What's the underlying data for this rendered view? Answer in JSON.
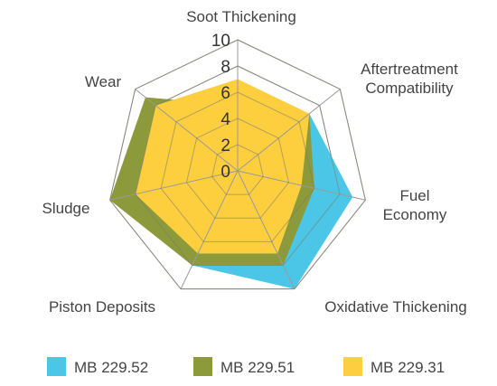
{
  "chart_data": {
    "type": "radar",
    "axes": [
      [
        "Soot Thickening"
      ],
      [
        "Aftertreatment",
        "Compatibility"
      ],
      [
        "Fuel",
        "Economy"
      ],
      [
        "Oxidative Thickening"
      ],
      [
        "Piston Deposits"
      ],
      [
        "Sludge"
      ],
      [
        "Wear"
      ]
    ],
    "rlim": [
      0,
      10
    ],
    "ticks": [
      "0",
      "2",
      "4",
      "6",
      "8",
      "10"
    ],
    "series": [
      {
        "name": "MB 229.52",
        "color": "#4cc6e6",
        "values": [
          5,
          7,
          9,
          10,
          8,
          9,
          8
        ]
      },
      {
        "name": "MB 229.51",
        "color": "#8c9a3c",
        "values": [
          5,
          7,
          6,
          8,
          8,
          10,
          9
        ]
      },
      {
        "name": "MB 229.31",
        "color": "#fdcf3f",
        "values": [
          7,
          7,
          5,
          7,
          7,
          8,
          8
        ]
      }
    ],
    "grid": true,
    "legend_position": "bottom"
  }
}
